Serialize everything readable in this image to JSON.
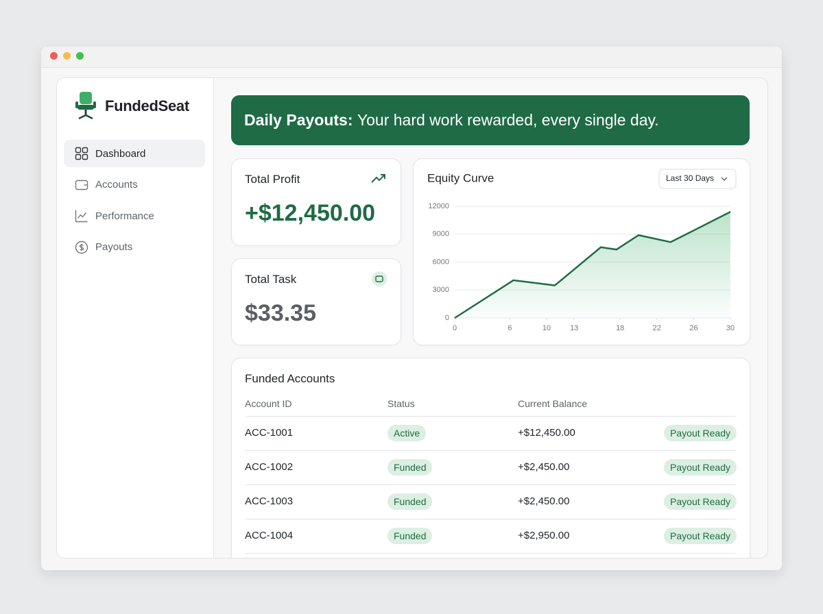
{
  "brand": "FundedSeat",
  "nav": [
    "Dashboard",
    "Accounts",
    "Performance",
    "Payouts"
  ],
  "banner": {
    "bold": "Daily Payouts:",
    "text": "Your hard work rewarded, every single day."
  },
  "stats": [
    {
      "label": "Total Profit",
      "value": "+$12,450.00"
    },
    {
      "label": "Total Task",
      "value": "$33.35"
    }
  ],
  "chart_data": {
    "type": "line",
    "title": "Equity Curve",
    "range_selector": "Last 30 Days",
    "x": [
      0,
      6.4,
      10.9,
      15.9,
      17.6,
      20,
      23.5,
      30
    ],
    "series": [
      {
        "color": "#1e6b45",
        "values": [
          0,
          4050,
          3500,
          7600,
          7350,
          8900,
          8150,
          11400
        ]
      }
    ],
    "xlim": [
      0,
      30
    ],
    "xticks": [
      0,
      6,
      10,
      13,
      18,
      22,
      26,
      30
    ],
    "ylim": [
      0,
      12000
    ],
    "yticks": [
      0,
      3000,
      6000,
      9000,
      12000
    ],
    "grid": true,
    "area": true
  },
  "table": {
    "title": "Funded Accounts",
    "columns": [
      "Account ID",
      "Status",
      "Current Balance"
    ],
    "rows": [
      [
        "ACC-1001",
        "Active",
        "+$12,450.00",
        "Payout Ready"
      ],
      [
        "ACC-1002",
        "Funded",
        "+$2,450.00",
        "Payout Ready"
      ],
      [
        "ACC-1003",
        "Funded",
        "+$2,450.00",
        "Payout Ready"
      ],
      [
        "ACC-1004",
        "Funded",
        "+$2,950.00",
        "Payout Ready"
      ]
    ]
  }
}
